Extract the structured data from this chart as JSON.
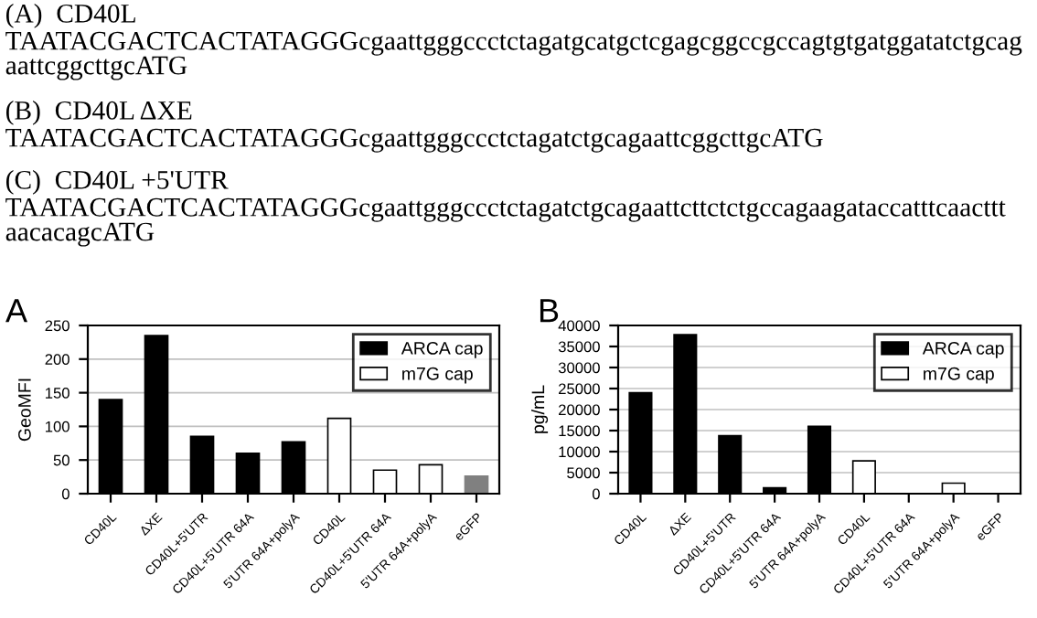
{
  "chart_data": [
    {
      "type": "bar",
      "title": "A",
      "ylabel": "GeoMFI",
      "categories": [
        "CD40L",
        "ΔXE",
        "CD40L+5'UTR",
        "CD40L+5'UTR 64A",
        "5'UTR 64A+polyA",
        "CD40L",
        "CD40L+5'UTR 64A",
        "5'UTR 64A+polyA",
        "eGFP"
      ],
      "series": [
        {
          "name": "ARCA cap",
          "color": "#000000",
          "values": [
            140,
            235,
            85,
            60,
            77,
            null,
            null,
            null,
            null
          ]
        },
        {
          "name": "m7G cap",
          "color": "#ffffff",
          "values": [
            null,
            null,
            null,
            null,
            null,
            112,
            35,
            43,
            null
          ]
        },
        {
          "color": "#808080",
          "values": [
            null,
            null,
            null,
            null,
            null,
            null,
            null,
            null,
            26
          ]
        }
      ],
      "ylim": [
        0,
        250
      ],
      "yticks": [
        0,
        50,
        100,
        150,
        200,
        250
      ],
      "grid": "y",
      "legend": "top right",
      "annotations": [
        "(A)  CD40L",
        "TAATACGACTCACTATAGGGcgaattgggccctctagatgcatgctcgagcggccgccagtgtgatggatatctgcag\naattcggcttgcATG",
        "(B)  CD40L ΔXE",
        "TAATACGACTCACTATAGGGcgaattgggccctctagatctgcagaattcggcttgcATG",
        "(C)  CD40L +5'UTR",
        "TAATACGACTCACTATAGGGcgaattgggccctctagatctgcagaattcttctctgccagaagataccatttcaacttt\naacacagcATG"
      ]
    },
    {
      "type": "bar",
      "title": "B",
      "ylabel": "pg/mL",
      "categories": [
        "CD40L",
        "ΔXE",
        "CD40L+5'UTR",
        "CD40L+5'UTR 64A",
        "5'UTR 64A+polyA",
        "CD40L",
        "CD40L+5'UTR 64A",
        "5'UTR 64A+polyA",
        "eGFP"
      ],
      "series": [
        {
          "name": "ARCA cap",
          "color": "#000000",
          "values": [
            24000,
            37800,
            13800,
            1400,
            16000,
            null,
            null,
            null,
            null
          ]
        },
        {
          "name": "m7G cap",
          "color": "#ffffff",
          "values": [
            null,
            null,
            null,
            null,
            null,
            7800,
            null,
            2500,
            null
          ]
        },
        {
          "color": "#808080",
          "values": [
            null,
            null,
            null,
            null,
            null,
            null,
            null,
            null,
            0
          ]
        }
      ],
      "ylim": [
        0,
        40000
      ],
      "yticks": [
        0,
        5000,
        10000,
        15000,
        20000,
        25000,
        30000,
        35000,
        40000
      ],
      "grid": "y",
      "legend": "top right"
    }
  ]
}
